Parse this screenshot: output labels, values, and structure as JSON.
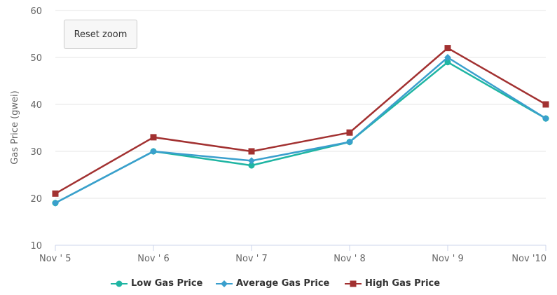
{
  "toolbar": {
    "reset_zoom_label": "Reset zoom"
  },
  "chart_data": {
    "type": "line",
    "categories": [
      "Nov ' 5",
      "Nov ' 6",
      "Nov ' 7",
      "Nov ' 8",
      "Nov ' 9",
      "Nov '10"
    ],
    "series": [
      {
        "name": "Low Gas Price",
        "values": [
          19,
          30,
          27,
          32,
          49,
          37
        ],
        "color": "#1fb5a3",
        "marker": "circle"
      },
      {
        "name": "Average Gas Price",
        "values": [
          19,
          30,
          28,
          32,
          50,
          37
        ],
        "color": "#3a9fcd",
        "marker": "diamond"
      },
      {
        "name": "High Gas Price",
        "values": [
          21,
          33,
          30,
          34,
          52,
          40
        ],
        "color": "#a23131",
        "marker": "square"
      }
    ],
    "title": "",
    "xlabel": "",
    "ylabel": "Gas Price (gwei)",
    "ylim": [
      10,
      60
    ],
    "yticks": [
      10,
      20,
      30,
      40,
      50,
      60
    ],
    "grid": true,
    "legend_position": "bottom"
  }
}
